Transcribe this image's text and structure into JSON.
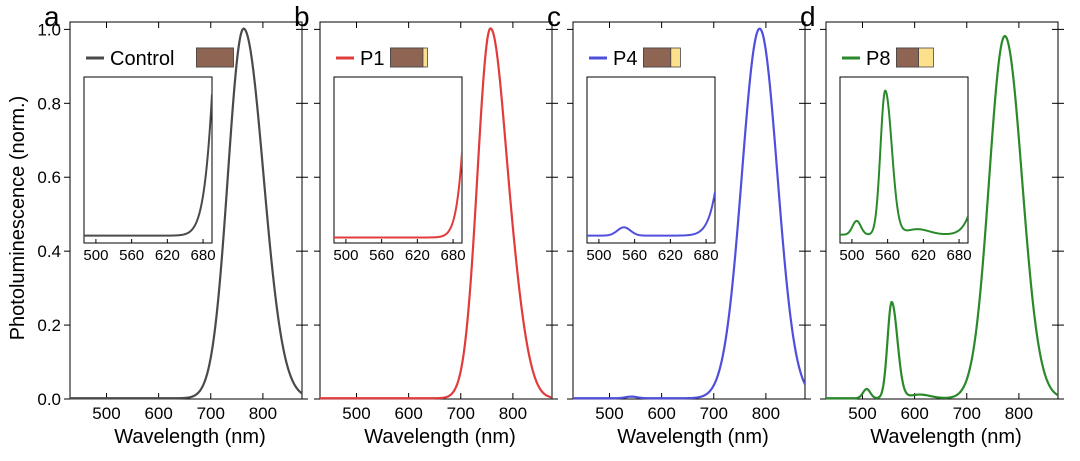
{
  "figure": {
    "ylabel": "Photoluminescence (norm.)",
    "colors": {
      "brown": "#8d6552",
      "yellow": "#fde08c",
      "axis": "#000000"
    }
  },
  "chart_data": [
    {
      "type": "line",
      "panel": "a",
      "legend": "Control",
      "color": "#4a4a4a",
      "xlabel": "Wavelength (nm)",
      "xlim": [
        430,
        875
      ],
      "ylim": [
        0,
        1.02
      ],
      "xticks": [
        500,
        600,
        700,
        800
      ],
      "yticks": [
        0.0,
        0.2,
        0.4,
        0.6,
        0.8,
        1.0
      ],
      "ytick_labels": [
        "0.0",
        "0.2",
        "0.4",
        "0.6",
        "0.8",
        "1.0"
      ],
      "composition_bar": {
        "brown_fraction": 1.0
      },
      "peaks": [
        {
          "center": 763,
          "height": 1.0,
          "wl": 30,
          "wr": 38
        }
      ],
      "inset": {
        "xlim": [
          480,
          695
        ],
        "ylim": [
          0,
          0.09
        ],
        "xticks": [
          500,
          560,
          620,
          680
        ],
        "baseline": 0.004
      }
    },
    {
      "type": "line",
      "panel": "b",
      "legend": "P1",
      "color": "#e03c3c",
      "xlabel": "Wavelength (nm)",
      "xlim": [
        430,
        875
      ],
      "ylim": [
        0,
        1.02
      ],
      "xticks": [
        500,
        600,
        700,
        800
      ],
      "yticks": [
        0.0,
        0.2,
        0.4,
        0.6,
        0.8,
        1.0
      ],
      "composition_bar": {
        "brown_fraction": 0.88
      },
      "peaks": [
        {
          "center": 757,
          "height": 1.0,
          "wl": 25,
          "wr": 32
        },
        {
          "center": 812,
          "height": 0.07,
          "wl": 18,
          "wr": 22
        }
      ],
      "inset": {
        "xlim": [
          480,
          695
        ],
        "ylim": [
          0,
          0.09
        ],
        "xticks": [
          500,
          560,
          620,
          680
        ],
        "baseline": 0.003
      }
    },
    {
      "type": "line",
      "panel": "c",
      "legend": "P4",
      "color": "#4f4fdc",
      "xlabel": "Wavelength (nm)",
      "xlim": [
        430,
        875
      ],
      "ylim": [
        0,
        1.02
      ],
      "xticks": [
        500,
        600,
        700,
        800
      ],
      "yticks": [
        0.0,
        0.2,
        0.4,
        0.6,
        0.8,
        1.0
      ],
      "composition_bar": {
        "brown_fraction": 0.74
      },
      "peaks": [
        {
          "center": 788,
          "height": 1.0,
          "wl": 34,
          "wr": 34
        },
        {
          "center": 542,
          "height": 0.0045,
          "wl": 11,
          "wr": 11
        }
      ],
      "inset": {
        "xlim": [
          480,
          695
        ],
        "ylim": [
          0,
          0.09
        ],
        "xticks": [
          500,
          560,
          620,
          680
        ],
        "baseline": 0.004
      }
    },
    {
      "type": "line",
      "panel": "d",
      "legend": "P8",
      "color": "#2a8a2a",
      "xlabel": "Wavelength (nm)",
      "xlim": [
        430,
        875
      ],
      "ylim": [
        0,
        1.02
      ],
      "xticks": [
        500,
        600,
        700,
        800
      ],
      "yticks": [
        0.0,
        0.2,
        0.4,
        0.6,
        0.8,
        1.0
      ],
      "composition_bar": {
        "brown_fraction": 0.6
      },
      "peaks": [
        {
          "center": 773,
          "height": 0.98,
          "wl": 30,
          "wr": 33
        },
        {
          "center": 556,
          "height": 0.26,
          "wl": 8,
          "wr": 11
        },
        {
          "center": 508,
          "height": 0.025,
          "wl": 7,
          "wr": 7
        },
        {
          "center": 610,
          "height": 0.01,
          "wl": 20,
          "wr": 20
        }
      ],
      "inset": {
        "xlim": [
          480,
          695
        ],
        "ylim": [
          0,
          0.3
        ],
        "xticks": [
          500,
          560,
          620,
          680
        ],
        "baseline": 0.015
      }
    }
  ]
}
